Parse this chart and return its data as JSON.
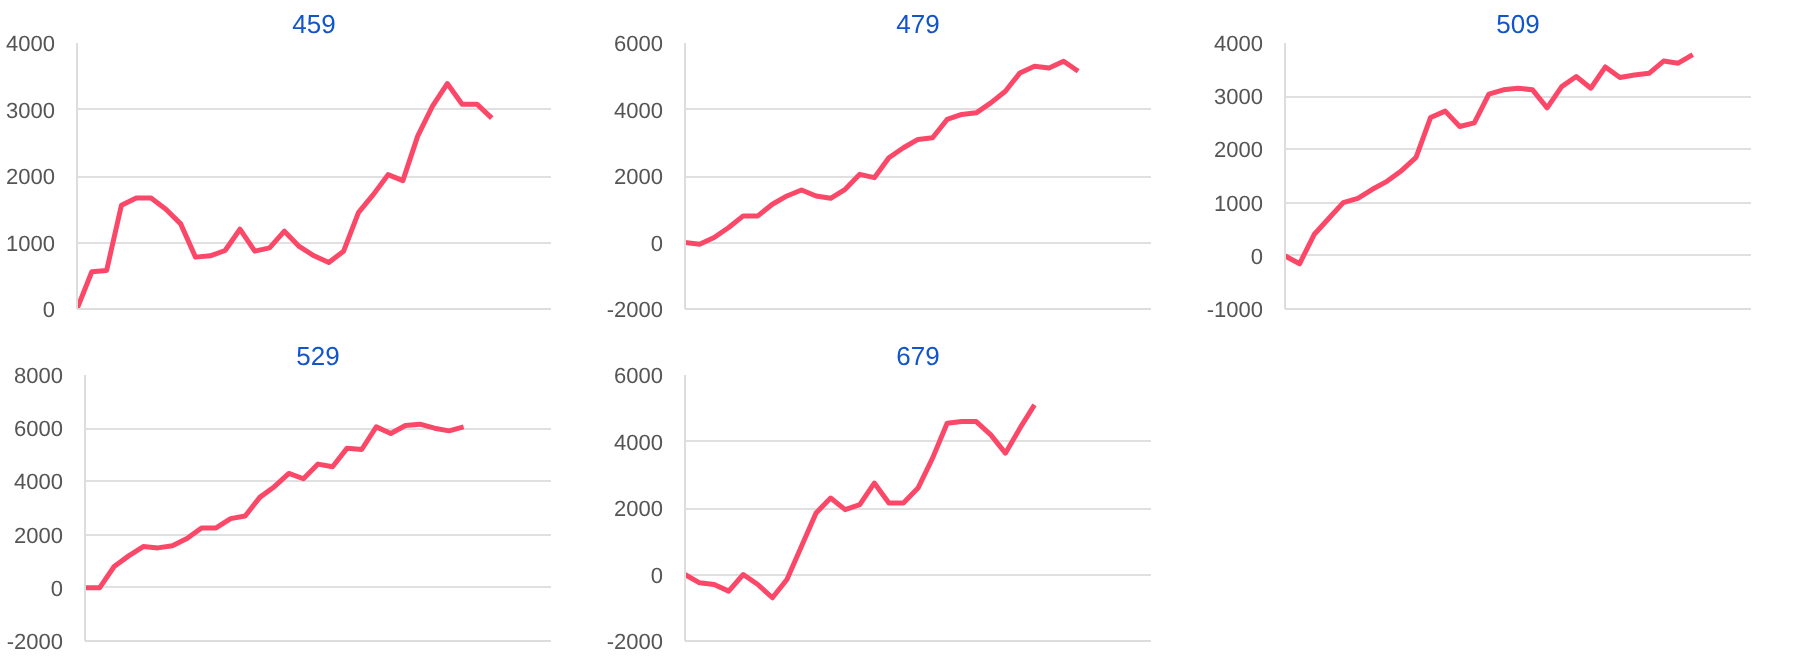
{
  "chart_data": [
    {
      "type": "line",
      "title": "459",
      "categories": [
        null,
        null,
        null,
        null,
        null,
        null,
        null,
        null,
        null,
        null,
        null,
        null,
        null,
        null,
        null,
        null,
        null,
        null,
        null,
        null,
        null,
        null,
        null,
        null,
        null,
        null,
        null,
        null,
        null,
        null,
        null,
        null,
        null
      ],
      "tick_labels": "y",
      "grid": "y",
      "ylim": [
        0,
        4000
      ],
      "yticks": [
        0,
        1000,
        2000,
        3000,
        4000
      ],
      "series": [
        {
          "color": "#fb4868",
          "values": [
            0,
            560,
            580,
            1560,
            1670,
            1670,
            1500,
            1280,
            780,
            800,
            880,
            1200,
            870,
            920,
            1170,
            940,
            800,
            700,
            870,
            1450,
            1720,
            2020,
            1930,
            2600,
            3050,
            3390,
            3080,
            3080,
            2870,
            null,
            null,
            null,
            null
          ]
        }
      ]
    },
    {
      "type": "line",
      "title": "479",
      "categories": [
        null,
        null,
        null,
        null,
        null,
        null,
        null,
        null,
        null,
        null,
        null,
        null,
        null,
        null,
        null,
        null,
        null,
        null,
        null,
        null,
        null,
        null,
        null,
        null,
        null,
        null,
        null,
        null,
        null,
        null,
        null,
        null,
        null
      ],
      "tick_labels": "y",
      "grid": "y",
      "ylim": [
        -2000,
        6000
      ],
      "yticks": [
        -2000,
        0,
        2000,
        4000,
        6000
      ],
      "series": [
        {
          "color": "#fb4868",
          "values": [
            0,
            -50,
            150,
            450,
            800,
            800,
            1150,
            1400,
            1580,
            1400,
            1330,
            1600,
            2050,
            1950,
            2550,
            2850,
            3100,
            3150,
            3700,
            3850,
            3900,
            4200,
            4550,
            5100,
            5300,
            5250,
            5450,
            5150,
            null,
            null,
            null,
            null,
            null
          ]
        }
      ]
    },
    {
      "type": "line",
      "title": "509",
      "categories": [
        null,
        null,
        null,
        null,
        null,
        null,
        null,
        null,
        null,
        null,
        null,
        null,
        null,
        null,
        null,
        null,
        null,
        null,
        null,
        null,
        null,
        null,
        null,
        null,
        null,
        null,
        null,
        null,
        null,
        null,
        null,
        null,
        null
      ],
      "tick_labels": "y",
      "grid": "y",
      "ylim": [
        -1000,
        4000
      ],
      "yticks": [
        -1000,
        0,
        1000,
        2000,
        3000,
        4000
      ],
      "series": [
        {
          "color": "#fb4868",
          "values": [
            0,
            -150,
            400,
            700,
            1000,
            1080,
            1250,
            1400,
            1600,
            1850,
            2600,
            2720,
            2430,
            2500,
            3040,
            3120,
            3150,
            3120,
            2780,
            3180,
            3370,
            3150,
            3550,
            3350,
            3400,
            3430,
            3660,
            3620,
            3780,
            null,
            null,
            null,
            null
          ]
        }
      ]
    },
    {
      "type": "line",
      "title": "529",
      "categories": [
        null,
        null,
        null,
        null,
        null,
        null,
        null,
        null,
        null,
        null,
        null,
        null,
        null,
        null,
        null,
        null,
        null,
        null,
        null,
        null,
        null,
        null,
        null,
        null,
        null,
        null,
        null,
        null,
        null,
        null,
        null,
        null,
        null
      ],
      "tick_labels": "y",
      "grid": "y",
      "ylim": [
        -2000,
        8000
      ],
      "yticks": [
        -2000,
        0,
        2000,
        4000,
        6000,
        8000
      ],
      "series": [
        {
          "color": "#fb4868",
          "values": [
            0,
            0,
            800,
            1200,
            1550,
            1500,
            1580,
            1850,
            2250,
            2250,
            2600,
            2700,
            3400,
            3800,
            4300,
            4100,
            4650,
            4550,
            5250,
            5200,
            6050,
            5800,
            6100,
            6150,
            6000,
            5900,
            6050,
            null,
            null,
            null,
            null,
            null,
            null
          ]
        }
      ]
    },
    {
      "type": "line",
      "title": "679",
      "categories": [
        null,
        null,
        null,
        null,
        null,
        null,
        null,
        null,
        null,
        null,
        null,
        null,
        null,
        null,
        null,
        null,
        null,
        null,
        null,
        null,
        null,
        null,
        null,
        null,
        null,
        null,
        null,
        null,
        null,
        null,
        null,
        null,
        null
      ],
      "tick_labels": "y",
      "grid": "y",
      "ylim": [
        -2000,
        6000
      ],
      "yticks": [
        -2000,
        0,
        2000,
        4000,
        6000
      ],
      "series": [
        {
          "color": "#fb4868",
          "values": [
            0,
            -250,
            -300,
            -500,
            0,
            -300,
            -700,
            -150,
            850,
            1850,
            2300,
            1950,
            2100,
            2750,
            2150,
            2150,
            2600,
            3500,
            4550,
            4600,
            4600,
            4200,
            3650,
            4400,
            5100,
            null,
            null,
            null,
            null,
            null,
            null,
            null,
            null
          ]
        }
      ]
    }
  ]
}
